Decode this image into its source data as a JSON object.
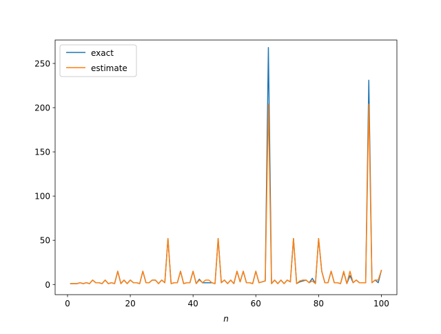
{
  "chart_data": {
    "type": "line",
    "title": "",
    "xlabel": "n",
    "ylabel": "",
    "xlim": [
      -3.95,
      104.95
    ],
    "ylim": [
      -11.5,
      276.5
    ],
    "xticks": [
      0,
      20,
      40,
      60,
      80,
      100
    ],
    "yticks": [
      0,
      50,
      100,
      150,
      200,
      250
    ],
    "grid": false,
    "legend_position": "upper-left",
    "x": [
      1,
      2,
      3,
      4,
      5,
      6,
      7,
      8,
      9,
      10,
      11,
      12,
      13,
      14,
      15,
      16,
      17,
      18,
      19,
      20,
      21,
      22,
      23,
      24,
      25,
      26,
      27,
      28,
      29,
      30,
      31,
      32,
      33,
      34,
      35,
      36,
      37,
      38,
      39,
      40,
      41,
      42,
      43,
      44,
      45,
      46,
      47,
      48,
      49,
      50,
      51,
      52,
      53,
      54,
      55,
      56,
      57,
      58,
      59,
      60,
      61,
      62,
      63,
      64,
      65,
      66,
      67,
      68,
      69,
      70,
      71,
      72,
      73,
      74,
      75,
      76,
      77,
      78,
      79,
      80,
      81,
      82,
      83,
      84,
      85,
      86,
      87,
      88,
      89,
      90,
      91,
      92,
      93,
      94,
      95,
      96,
      97,
      98,
      99,
      100
    ],
    "series": [
      {
        "name": "exact",
        "color": "#1f77b4",
        "values": [
          1,
          1,
          1,
          2,
          1,
          2,
          1,
          5,
          2,
          2,
          1,
          5,
          1,
          2,
          1,
          15,
          1,
          5,
          1,
          5,
          2,
          2,
          1,
          15,
          2,
          2,
          5,
          5,
          1,
          5,
          2,
          52,
          1,
          2,
          2,
          15,
          1,
          2,
          2,
          15,
          1,
          6,
          2,
          2,
          2,
          2,
          1,
          52,
          2,
          5,
          1,
          5,
          1,
          15,
          3,
          15,
          2,
          2,
          1,
          15,
          2,
          3,
          4,
          268,
          1,
          5,
          1,
          5,
          1,
          5,
          3,
          52,
          1,
          3,
          4,
          5,
          2,
          7,
          1,
          52,
          15,
          2,
          2,
          15,
          2,
          2,
          1,
          14,
          1,
          10,
          2,
          5,
          2,
          2,
          2,
          231,
          2,
          5,
          2,
          16
        ]
      },
      {
        "name": "estimate",
        "color": "#ff7f0e",
        "values": [
          1,
          1,
          1,
          2,
          1,
          2,
          1,
          5,
          2,
          2,
          1,
          5,
          1,
          2,
          1,
          15,
          1,
          5,
          1,
          5,
          2,
          2,
          1,
          15,
          2,
          2,
          5,
          5,
          1,
          5,
          2,
          52,
          1,
          2,
          2,
          15,
          1,
          2,
          2,
          15,
          1,
          5,
          2,
          5,
          5,
          2,
          1,
          52,
          2,
          5,
          1,
          5,
          1,
          15,
          3,
          15,
          2,
          2,
          1,
          15,
          2,
          3,
          4,
          204,
          1,
          5,
          1,
          5,
          1,
          5,
          3,
          52,
          1,
          4,
          5,
          5,
          2,
          4,
          1,
          52,
          15,
          2,
          2,
          15,
          2,
          2,
          1,
          15,
          1,
          15,
          2,
          5,
          2,
          2,
          2,
          204,
          2,
          5,
          5,
          16
        ]
      }
    ]
  }
}
